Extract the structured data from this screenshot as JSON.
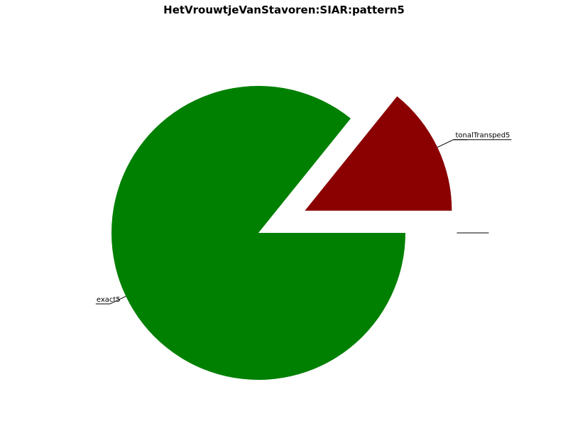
{
  "chart_data": {
    "type": "pie",
    "title": "HetVrouwtjeVanStavoren:SIAR:pattern5",
    "slices": [
      {
        "label": "exact5",
        "value": 85.8,
        "color": "#008000",
        "exploded": false
      },
      {
        "label": "tonalTransped5",
        "value": 14.2,
        "color": "#8b0000",
        "exploded": true
      },
      {
        "label": "",
        "value": 0.0,
        "color": "#000000",
        "exploded": true
      },
      {
        "label": "",
        "value": 0.0,
        "color": "#000000",
        "exploded": true
      }
    ],
    "start_angle_deg": 0,
    "direction": "clockwise",
    "legend": "none"
  }
}
